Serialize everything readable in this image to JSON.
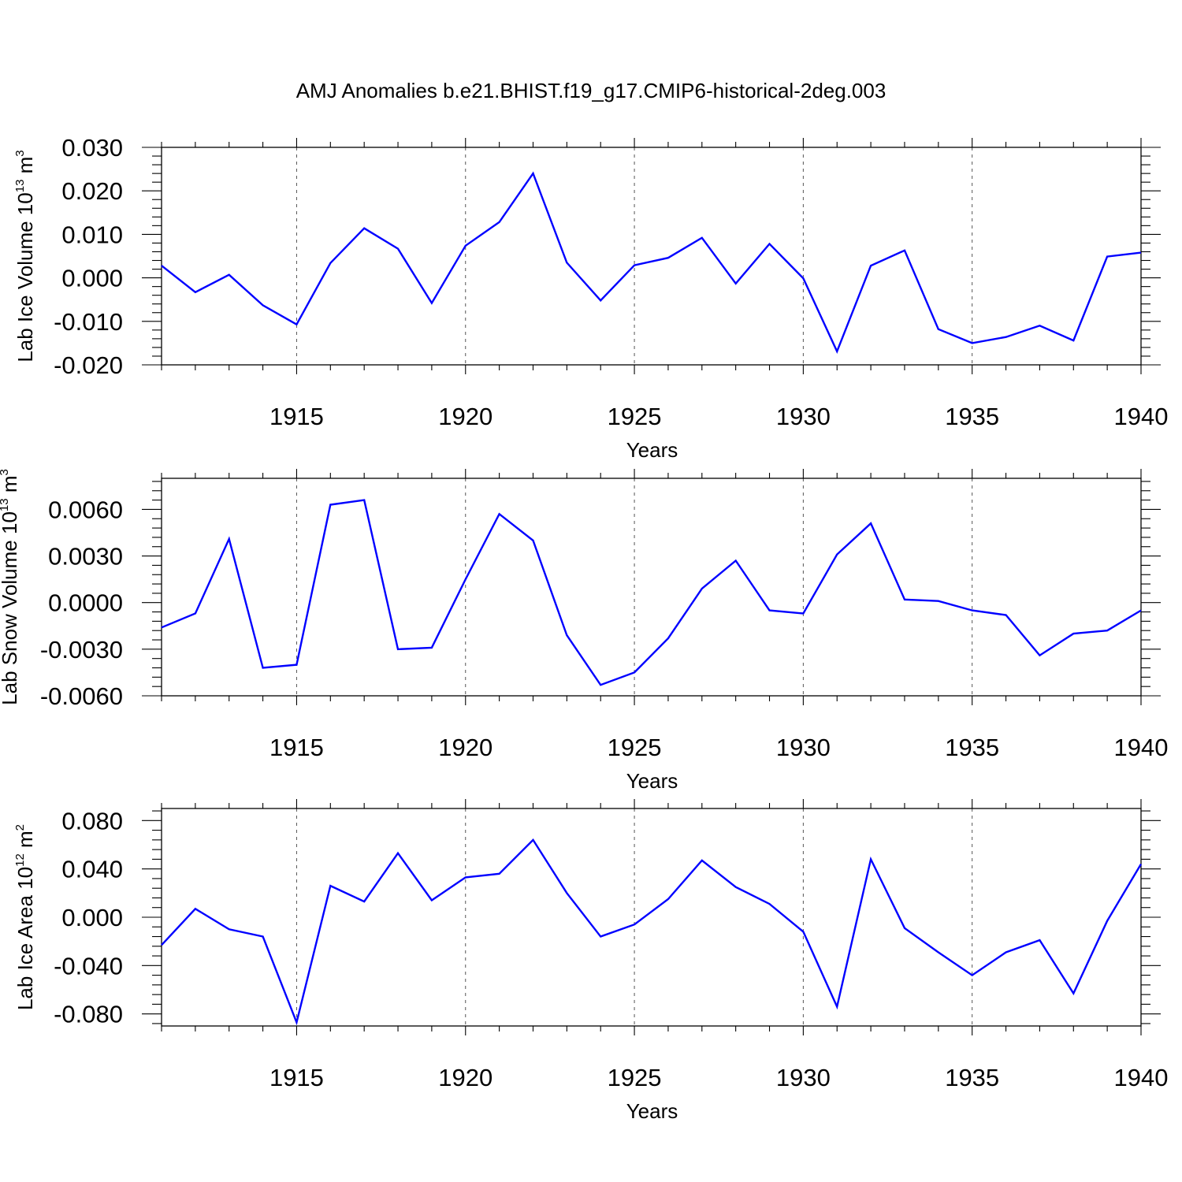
{
  "title": "AMJ Anomalies b.e21.BHIST.f19_g17.CMIP6-historical-2deg.003",
  "colors": {
    "series": "#0000ff",
    "axes": "#000000",
    "grid": "#555555"
  },
  "chart_data": [
    {
      "type": "line",
      "ylabel_main": "Lab Ice Volume 10",
      "ylabel_exp": "13",
      "ylabel_unit": " m",
      "ylabel_unit_exp": "3",
      "xlabel": "Years",
      "xlim": [
        1911,
        1940
      ],
      "ylim": [
        -0.02,
        0.03
      ],
      "yticks": [
        -0.02,
        -0.01,
        0.0,
        0.01,
        0.02,
        0.03
      ],
      "ytick_labels": [
        "-0.020",
        "-0.010",
        "0.000",
        "0.010",
        "0.020",
        "0.030"
      ],
      "xticks": [
        1915,
        1920,
        1925,
        1930,
        1935,
        1940
      ],
      "xtick_labels": [
        "1915",
        "1920",
        "1925",
        "1930",
        "1935",
        "1940"
      ],
      "vgrid": [
        1915,
        1920,
        1925,
        1930,
        1935
      ],
      "grid": "vertical dashed at x major ticks",
      "series": [
        {
          "x": [
            1911,
            1912,
            1913,
            1914,
            1915,
            1916,
            1917,
            1918,
            1919,
            1920,
            1921,
            1922,
            1923,
            1924,
            1925,
            1926,
            1927,
            1928,
            1929,
            1930,
            1931,
            1932,
            1933,
            1934,
            1935,
            1936,
            1937,
            1938,
            1939,
            1940
          ],
          "values": [
            0.0028,
            -0.0033,
            0.0007,
            -0.0063,
            -0.0107,
            0.0034,
            0.0114,
            0.0067,
            -0.0058,
            0.0074,
            0.0128,
            0.024,
            0.0035,
            -0.0052,
            0.0029,
            0.0046,
            0.0092,
            -0.0013,
            0.0078,
            -0.0001,
            -0.0169,
            0.0028,
            0.0063,
            -0.0118,
            -0.015,
            -0.0136,
            -0.011,
            -0.0144,
            0.0049,
            0.0058
          ]
        }
      ]
    },
    {
      "type": "line",
      "ylabel_main": "Lab Snow Volume 10",
      "ylabel_exp": "13",
      "ylabel_unit": " m",
      "ylabel_unit_exp": "3",
      "xlabel": "Years",
      "xlim": [
        1911,
        1940
      ],
      "ylim": [
        -0.006,
        0.008
      ],
      "yticks": [
        -0.006,
        -0.003,
        0.0,
        0.003,
        0.006
      ],
      "ytick_labels": [
        "-0.0060",
        "-0.0030",
        "0.0000",
        "0.0030",
        "0.0060"
      ],
      "xticks": [
        1915,
        1920,
        1925,
        1930,
        1935,
        1940
      ],
      "xtick_labels": [
        "1915",
        "1920",
        "1925",
        "1930",
        "1935",
        "1940"
      ],
      "vgrid": [
        1915,
        1920,
        1925,
        1930,
        1935
      ],
      "grid": "vertical dashed at x major ticks",
      "series": [
        {
          "x": [
            1911,
            1912,
            1913,
            1914,
            1915,
            1916,
            1917,
            1918,
            1919,
            1920,
            1921,
            1922,
            1923,
            1924,
            1925,
            1926,
            1927,
            1928,
            1929,
            1930,
            1931,
            1932,
            1933,
            1934,
            1935,
            1936,
            1937,
            1938,
            1939,
            1940
          ],
          "values": [
            -0.0016,
            -0.0007,
            0.0041,
            -0.0042,
            -0.004,
            0.0063,
            0.0066,
            -0.003,
            -0.0029,
            0.0015,
            0.0057,
            0.004,
            -0.0021,
            -0.0053,
            -0.0045,
            -0.0023,
            0.0009,
            0.0027,
            -0.0005,
            -0.0007,
            0.0031,
            0.0051,
            0.0002,
            0.0001,
            -0.0005,
            -0.0008,
            -0.0034,
            -0.002,
            -0.0018,
            -0.0005
          ]
        }
      ]
    },
    {
      "type": "line",
      "ylabel_main": "Lab Ice Area 10",
      "ylabel_exp": "12",
      "ylabel_unit": " m",
      "ylabel_unit_exp": "2",
      "xlabel": "Years",
      "xlim": [
        1911,
        1940
      ],
      "ylim": [
        -0.09,
        0.09
      ],
      "yticks": [
        -0.08,
        -0.04,
        0.0,
        0.04,
        0.08
      ],
      "ytick_labels": [
        "-0.080",
        "-0.040",
        "0.000",
        "0.040",
        "0.080"
      ],
      "xticks": [
        1915,
        1920,
        1925,
        1930,
        1935,
        1940
      ],
      "xtick_labels": [
        "1915",
        "1920",
        "1925",
        "1930",
        "1935",
        "1940"
      ],
      "vgrid": [
        1915,
        1920,
        1925,
        1930,
        1935
      ],
      "grid": "vertical dashed at x major ticks",
      "series": [
        {
          "x": [
            1911,
            1912,
            1913,
            1914,
            1915,
            1916,
            1917,
            1918,
            1919,
            1920,
            1921,
            1922,
            1923,
            1924,
            1925,
            1926,
            1927,
            1928,
            1929,
            1930,
            1931,
            1932,
            1933,
            1934,
            1935,
            1936,
            1937,
            1938,
            1939,
            1940
          ],
          "values": [
            -0.023,
            0.007,
            -0.01,
            -0.016,
            -0.087,
            0.026,
            0.013,
            0.053,
            0.014,
            0.033,
            0.036,
            0.064,
            0.02,
            -0.016,
            -0.006,
            0.015,
            0.047,
            0.025,
            0.011,
            -0.012,
            -0.074,
            0.048,
            -0.009,
            -0.029,
            -0.048,
            -0.029,
            -0.019,
            -0.063,
            -0.003,
            0.044
          ]
        }
      ]
    }
  ]
}
